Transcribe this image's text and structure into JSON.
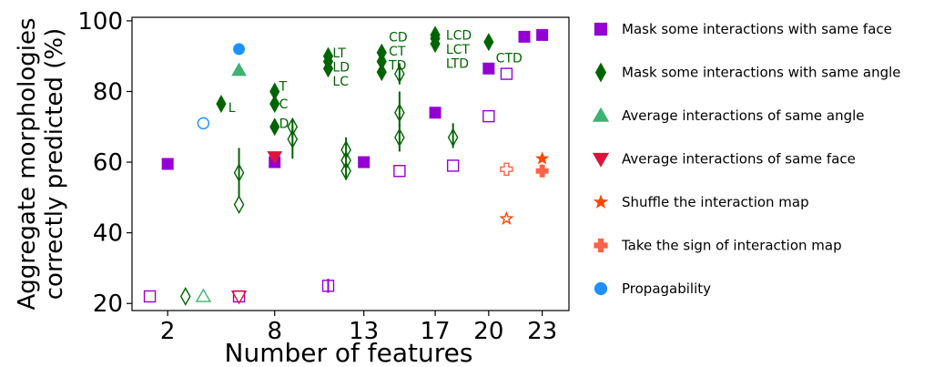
{
  "chart_data": {
    "type": "scatter",
    "xlabel": "Number of features",
    "ylabel_lines": [
      "Aggregate morphologies",
      "correctly predicted (%)"
    ],
    "xlim": [
      0,
      24.5
    ],
    "ylim": [
      18,
      101
    ],
    "xticks": [
      2,
      8,
      13,
      17,
      20,
      23
    ],
    "yticks": [
      20,
      40,
      60,
      80,
      100
    ],
    "legend_position": "right",
    "colors": {
      "mask_face": "#9400d3",
      "mask_angle": "#006400",
      "avg_angle": "#3cb371",
      "avg_face": "#dc143c",
      "shuffle": "#ff4500",
      "sign": "#ff6347",
      "prop": "#1e90ff"
    },
    "legend": [
      {
        "key": "mask_face",
        "label": "Mask some interactions with same face",
        "marker": "square"
      },
      {
        "key": "mask_angle",
        "label": "Mask some interactions with same angle",
        "marker": "diamond"
      },
      {
        "key": "avg_angle",
        "label": "Average interactions of same angle",
        "marker": "triangle-up"
      },
      {
        "key": "avg_face",
        "label": "Average interactions of same face",
        "marker": "triangle-down"
      },
      {
        "key": "shuffle",
        "label": "Shuffle the interaction map",
        "marker": "star"
      },
      {
        "key": "sign",
        "label": "Take the sign of interaction map",
        "marker": "plus"
      },
      {
        "key": "prop",
        "label": "Propagability",
        "marker": "circle"
      }
    ],
    "series": [
      {
        "key": "mask_face",
        "marker": "square",
        "filled": true,
        "points": [
          {
            "x": 2,
            "y": 59.5
          },
          {
            "x": 8,
            "y": 60
          },
          {
            "x": 13,
            "y": 60
          },
          {
            "x": 17,
            "y": 74
          },
          {
            "x": 20,
            "y": 86.5
          },
          {
            "x": 22,
            "y": 95.5
          },
          {
            "x": 23,
            "y": 96
          }
        ]
      },
      {
        "key": "mask_face",
        "marker": "square",
        "filled": false,
        "points": [
          {
            "x": 1,
            "y": 22
          },
          {
            "x": 6,
            "y": 22
          },
          {
            "x": 11,
            "y": 25,
            "yerr": [
              23,
              27
            ]
          },
          {
            "x": 15,
            "y": 57.5
          },
          {
            "x": 18,
            "y": 59
          },
          {
            "x": 20,
            "y": 73
          },
          {
            "x": 21,
            "y": 85
          }
        ]
      },
      {
        "key": "mask_angle",
        "marker": "diamond",
        "filled": true,
        "points": [
          {
            "x": 5,
            "y": 76.5
          },
          {
            "x": 8,
            "y": 80
          },
          {
            "x": 8,
            "y": 76.5
          },
          {
            "x": 8,
            "y": 70
          },
          {
            "x": 11,
            "y": 90
          },
          {
            "x": 11,
            "y": 88.5
          },
          {
            "x": 11,
            "y": 86.5
          },
          {
            "x": 14,
            "y": 91
          },
          {
            "x": 14,
            "y": 88.5
          },
          {
            "x": 14,
            "y": 85.5
          },
          {
            "x": 17,
            "y": 96
          },
          {
            "x": 17,
            "y": 95
          },
          {
            "x": 17,
            "y": 93.5
          },
          {
            "x": 20,
            "y": 94
          }
        ]
      },
      {
        "key": "mask_angle",
        "marker": "diamond",
        "filled": false,
        "points": [
          {
            "x": 3,
            "y": 22
          },
          {
            "x": 6,
            "y": 57,
            "yerr": [
              50,
              64
            ]
          },
          {
            "x": 6,
            "y": 48
          },
          {
            "x": 9,
            "y": 70,
            "yerr": [
              67,
              72
            ]
          },
          {
            "x": 9,
            "y": 66.5,
            "yerr": [
              61,
              70
            ]
          },
          {
            "x": 12,
            "y": 63.5,
            "yerr": [
              60,
              67
            ]
          },
          {
            "x": 12,
            "y": 60.5
          },
          {
            "x": 12,
            "y": 57.5,
            "yerr": [
              55,
              60
            ]
          },
          {
            "x": 15,
            "y": 85,
            "yerr": [
              82,
              88
            ]
          },
          {
            "x": 15,
            "y": 74,
            "yerr": [
              70,
              80
            ]
          },
          {
            "x": 15,
            "y": 67,
            "yerr": [
              63,
              71
            ]
          },
          {
            "x": 18,
            "y": 67,
            "yerr": [
              64,
              71
            ]
          }
        ]
      },
      {
        "key": "avg_angle",
        "marker": "triangle-up",
        "filled": true,
        "points": [
          {
            "x": 6,
            "y": 86
          }
        ]
      },
      {
        "key": "avg_angle",
        "marker": "triangle-up",
        "filled": false,
        "points": [
          {
            "x": 4,
            "y": 22
          }
        ]
      },
      {
        "key": "avg_face",
        "marker": "triangle-down",
        "filled": true,
        "points": [
          {
            "x": 8,
            "y": 61.5
          }
        ]
      },
      {
        "key": "avg_face",
        "marker": "triangle-down",
        "filled": false,
        "points": [
          {
            "x": 6,
            "y": 22
          }
        ]
      },
      {
        "key": "shuffle",
        "marker": "star",
        "filled": true,
        "points": [
          {
            "x": 23,
            "y": 61
          }
        ]
      },
      {
        "key": "shuffle",
        "marker": "star",
        "filled": false,
        "points": [
          {
            "x": 21,
            "y": 44
          }
        ]
      },
      {
        "key": "sign",
        "marker": "plus",
        "filled": true,
        "points": [
          {
            "x": 23,
            "y": 57.5
          }
        ]
      },
      {
        "key": "sign",
        "marker": "plus",
        "filled": false,
        "points": [
          {
            "x": 21,
            "y": 58
          }
        ]
      },
      {
        "key": "prop",
        "marker": "circle",
        "filled": true,
        "points": [
          {
            "x": 6,
            "y": 92
          }
        ]
      },
      {
        "key": "prop",
        "marker": "circle",
        "filled": false,
        "points": [
          {
            "x": 4,
            "y": 71
          }
        ]
      }
    ],
    "annotations": [
      {
        "text": "L",
        "x": 5.4,
        "y": 75.5
      },
      {
        "text": "T",
        "x": 8.25,
        "y": 81.5
      },
      {
        "text": "C",
        "x": 8.25,
        "y": 76.5
      },
      {
        "text": "D",
        "x": 8.25,
        "y": 71
      },
      {
        "text": "LT",
        "x": 11.25,
        "y": 91
      },
      {
        "text": "LD",
        "x": 11.25,
        "y": 87
      },
      {
        "text": "LC",
        "x": 11.25,
        "y": 83
      },
      {
        "text": "CD",
        "x": 14.4,
        "y": 95.5
      },
      {
        "text": "CT",
        "x": 14.4,
        "y": 91.5
      },
      {
        "text": "TD",
        "x": 14.4,
        "y": 87.5
      },
      {
        "text": "LCD",
        "x": 17.6,
        "y": 96
      },
      {
        "text": "LCT",
        "x": 17.6,
        "y": 92
      },
      {
        "text": "LTD",
        "x": 17.6,
        "y": 88
      },
      {
        "text": "CTD",
        "x": 20.4,
        "y": 89.5
      }
    ]
  }
}
